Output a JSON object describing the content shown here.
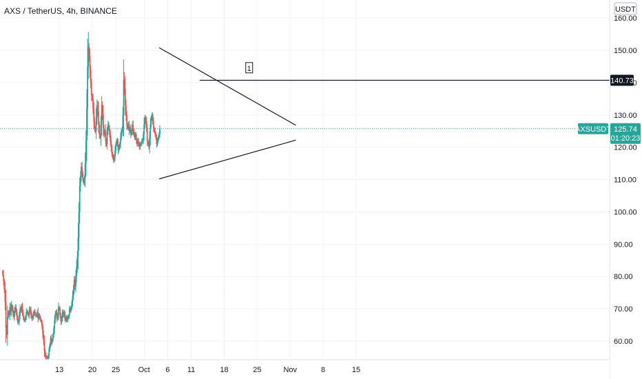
{
  "header": {
    "symbol_title": "AXS / TetherUS, 4h, BINANCE",
    "currency": "USDT"
  },
  "colors": {
    "up": "#26a69a",
    "down": "#ef5350",
    "line": "#131722",
    "grid": "#f0f3fa",
    "accent": "#26a69a",
    "label_bg": "#131722"
  },
  "chart_data": {
    "type": "candlestick",
    "title": "AXS / TetherUS, 4h, BINANCE",
    "y_unit": "USDT",
    "ylim": [
      54.5,
      162
    ],
    "xlim": [
      "Sep 8",
      "Nov 19"
    ],
    "y_ticks": [
      "160.00",
      "150.00",
      "140.00",
      "130.00",
      "120.00",
      "110.00",
      "100.00",
      "90.00",
      "80.00",
      "70.00",
      "60.00"
    ],
    "y_tick_values": [
      160,
      150,
      140,
      130,
      120,
      110,
      100,
      90,
      80,
      70,
      60
    ],
    "x_ticks": [
      {
        "label": "13",
        "day": 12
      },
      {
        "label": "20",
        "day": 19
      },
      {
        "label": "25",
        "day": 24
      },
      {
        "label": "Oct",
        "day": 30
      },
      {
        "label": "6",
        "day": 35
      },
      {
        "label": "11",
        "day": 40
      },
      {
        "label": "18",
        "day": 47
      },
      {
        "label": "25",
        "day": 54
      },
      {
        "label": "Nov",
        "day": 61
      },
      {
        "label": "8",
        "day": 68
      },
      {
        "label": "15",
        "day": 75
      }
    ],
    "closes": [
      80.5,
      78.5,
      76,
      72,
      64,
      62,
      67.5,
      69,
      68,
      70.5,
      69,
      71,
      70,
      68.5,
      67.5,
      69.5,
      70.5,
      69,
      67.5,
      66,
      66,
      68,
      70,
      69.5,
      71,
      69,
      67.5,
      66.5,
      66.5,
      67.5,
      69,
      69,
      68.5,
      68,
      70,
      69.5,
      68,
      67,
      67.5,
      68.5,
      69,
      68.5,
      68,
      68,
      69,
      67,
      68,
      67.5,
      66.5,
      66,
      64.5,
      62,
      60,
      57,
      55.5,
      55,
      55,
      54.8,
      55.5,
      57.5,
      59,
      61,
      59.5,
      60.5,
      62,
      64,
      66.5,
      68.5,
      69,
      67,
      68,
      70.5,
      70,
      68,
      66,
      67,
      69,
      68,
      69,
      67,
      66.5,
      67.5,
      66.5,
      67.5,
      68,
      70,
      69.5,
      70.5,
      72,
      74,
      76,
      79,
      77,
      80,
      83,
      86,
      92,
      100,
      108,
      111,
      114,
      112,
      110,
      109,
      110.5,
      115,
      122,
      132,
      145,
      151,
      148,
      144,
      140,
      136,
      135,
      132,
      128,
      126,
      125,
      129,
      133,
      131,
      127,
      124,
      123,
      127,
      133,
      130,
      126,
      124,
      125,
      122,
      121,
      125,
      127,
      126,
      124,
      122,
      120,
      118,
      117,
      116,
      117,
      119,
      121,
      122,
      121,
      119,
      120,
      121,
      123,
      125,
      126,
      130,
      141,
      138,
      133,
      130,
      127,
      126,
      127,
      125,
      126,
      124,
      125,
      127,
      125,
      124,
      123,
      124,
      122,
      121,
      122,
      121,
      120,
      121,
      121,
      122,
      122,
      124,
      127,
      129,
      128,
      126,
      122,
      121,
      120,
      123,
      127,
      129,
      130,
      128,
      126,
      125,
      124,
      123,
      121,
      122,
      123,
      124,
      125.74
    ],
    "trendlines": [
      {
        "from": {
          "day": 33.2,
          "price": 150.8
        },
        "to": {
          "day": 62.2,
          "price": 126.8
        }
      },
      {
        "from": {
          "day": 33.2,
          "price": 110.2
        },
        "to": {
          "day": 62.2,
          "price": 122.2
        }
      }
    ],
    "horizontal_line": {
      "price": 140.73,
      "from_day": 41.8,
      "label": "140.73"
    },
    "marker": {
      "text": "1",
      "day": 52.3,
      "price": 144.5
    },
    "current": {
      "symbol": "AXSUSDT",
      "price": "125.74",
      "countdown": "01:20:23",
      "value": 125.74
    }
  }
}
